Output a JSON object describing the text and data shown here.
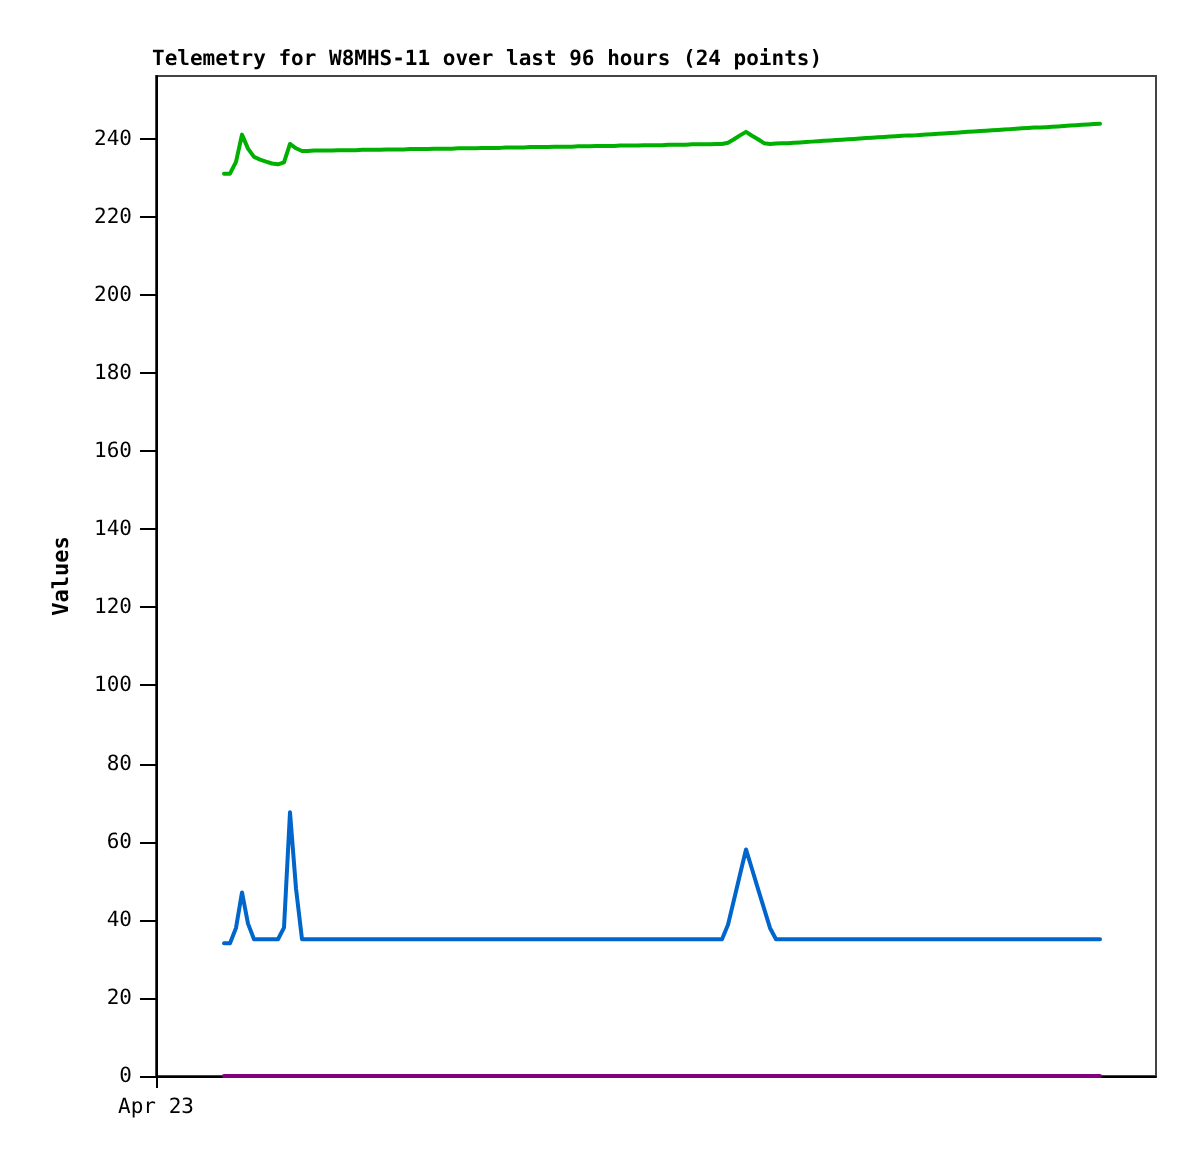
{
  "chart_data": {
    "type": "line",
    "title": "Telemetry for W8MHS-11 over last 96 hours (24 points)",
    "ylabel": "Values",
    "annotations": [
      "Apr 23"
    ],
    "categories": [
      null,
      null,
      null,
      null,
      null,
      null,
      null,
      null,
      null,
      null,
      null,
      null,
      null,
      null,
      null,
      null,
      null,
      null,
      null,
      null,
      null,
      null,
      null,
      null,
      null,
      null,
      null,
      null,
      null,
      null,
      null,
      null,
      null,
      null,
      null,
      null,
      null,
      null,
      null,
      null,
      null,
      null,
      null,
      null,
      null,
      null,
      null,
      null,
      null,
      null,
      null,
      null,
      null,
      null,
      null,
      null,
      null,
      null,
      null,
      null,
      null,
      null,
      null,
      null,
      null,
      null,
      null,
      null,
      null,
      null,
      null,
      null,
      null,
      null,
      null,
      null,
      null,
      null,
      null,
      null,
      null,
      null,
      null,
      null,
      null,
      null,
      null,
      null,
      null,
      null,
      null,
      null,
      null,
      null,
      null,
      null,
      null,
      null,
      null,
      null,
      null,
      null,
      null,
      null,
      null,
      null,
      null,
      null,
      null,
      null,
      null,
      null,
      null,
      null,
      null,
      null,
      null,
      null,
      null,
      null,
      null,
      null,
      null,
      null,
      null,
      null,
      null,
      null,
      null,
      null,
      null,
      null,
      null,
      null,
      null,
      null,
      null,
      null,
      null,
      null,
      null,
      null,
      null,
      null,
      null,
      null,
      null
    ],
    "series": [
      {
        "color": "#00b000",
        "values": [
          231,
          231,
          234.0,
          241,
          237.4,
          235.3,
          234.6,
          234.1,
          233.6,
          233.4,
          233.9,
          238.6,
          237.5,
          236.8,
          236.8,
          236.9,
          236.9,
          236.9,
          236.9,
          237.0,
          237.0,
          237.0,
          237.0,
          237.1,
          237.1,
          237.1,
          237.1,
          237.2,
          237.2,
          237.2,
          237.2,
          237.3,
          237.3,
          237.3,
          237.3,
          237.4,
          237.4,
          237.4,
          237.4,
          237.5,
          237.5,
          237.5,
          237.5,
          237.6,
          237.6,
          237.6,
          237.6,
          237.7,
          237.7,
          237.7,
          237.7,
          237.8,
          237.8,
          237.8,
          237.8,
          237.9,
          237.9,
          237.9,
          237.9,
          238.0,
          238.0,
          238.0,
          238.1,
          238.1,
          238.1,
          238.1,
          238.2,
          238.2,
          238.2,
          238.2,
          238.3,
          238.3,
          238.3,
          238.3,
          238.4,
          238.4,
          238.4,
          238.4,
          238.5,
          238.5,
          238.5,
          238.5,
          238.6,
          238.6,
          238.9,
          239.8,
          240.8,
          241.7,
          240.7,
          239.8,
          238.8,
          238.6,
          238.7,
          238.8,
          238.8,
          238.9,
          239.0,
          239.1,
          239.2,
          239.3,
          239.4,
          239.5,
          239.6,
          239.7,
          239.8,
          239.9,
          240.0,
          240.1,
          240.2,
          240.3,
          240.4,
          240.5,
          240.6,
          240.7,
          240.8,
          240.8,
          240.9,
          241.0,
          241.1,
          241.2,
          241.3,
          241.4,
          241.5,
          241.6,
          241.7,
          241.8,
          241.9,
          242.0,
          242.1,
          242.2,
          242.3,
          242.4,
          242.5,
          242.6,
          242.7,
          242.8,
          242.8,
          242.9,
          243.0,
          243.1,
          243.2,
          243.3,
          243.4,
          243.5,
          243.6,
          243.7,
          243.8
        ]
      },
      {
        "color": "#0066cc",
        "values": [
          34,
          34,
          37.9,
          47,
          39,
          35,
          35,
          35,
          35,
          35,
          38,
          67.5,
          48,
          35,
          35,
          35,
          35,
          35,
          35,
          35,
          35,
          35,
          35,
          35,
          35,
          35,
          35,
          35,
          35,
          35,
          35,
          35,
          35,
          35,
          35,
          35,
          35,
          35,
          35,
          35,
          35,
          35,
          35,
          35,
          35,
          35,
          35,
          35,
          35,
          35,
          35,
          35,
          35,
          35,
          35,
          35,
          35,
          35,
          35,
          35,
          35,
          35,
          35,
          35,
          35,
          35,
          35,
          35,
          35,
          35,
          35,
          35,
          35,
          35,
          35,
          35,
          35,
          35,
          35,
          35,
          35,
          35,
          35,
          35,
          38.7,
          45.1,
          51.6,
          58,
          53,
          47.9,
          42.9,
          37.9,
          35,
          35,
          35,
          35,
          35,
          35,
          35,
          35,
          35,
          35,
          35,
          35,
          35,
          35,
          35,
          35,
          35,
          35,
          35,
          35,
          35,
          35,
          35,
          35,
          35,
          35,
          35,
          35,
          35,
          35,
          35,
          35,
          35,
          35,
          35,
          35,
          35,
          35,
          35,
          35,
          35,
          35,
          35,
          35,
          35,
          35,
          35,
          35,
          35,
          35,
          35,
          35,
          35,
          35,
          35
        ]
      },
      {
        "color": "#800080",
        "values": [
          0,
          0,
          0,
          0,
          0,
          0,
          0,
          0,
          0,
          0,
          0,
          0,
          0,
          0,
          0,
          0,
          0,
          0,
          0,
          0,
          0,
          0,
          0,
          0,
          0,
          0,
          0,
          0,
          0,
          0,
          0,
          0,
          0,
          0,
          0,
          0,
          0,
          0,
          0,
          0,
          0,
          0,
          0,
          0,
          0,
          0,
          0,
          0,
          0,
          0,
          0,
          0,
          0,
          0,
          0,
          0,
          0,
          0,
          0,
          0,
          0,
          0,
          0,
          0,
          0,
          0,
          0,
          0,
          0,
          0,
          0,
          0,
          0,
          0,
          0,
          0,
          0,
          0,
          0,
          0,
          0,
          0,
          0,
          0,
          0,
          0,
          0,
          0,
          0,
          0,
          0,
          0,
          0,
          0,
          0,
          0,
          0,
          0,
          0,
          0,
          0,
          0,
          0,
          0,
          0,
          0,
          0,
          0,
          0,
          0,
          0,
          0,
          0,
          0,
          0,
          0,
          0,
          0,
          0,
          0,
          0,
          0,
          0,
          0,
          0,
          0,
          0,
          0,
          0,
          0,
          0,
          0,
          0,
          0,
          0,
          0,
          0,
          0,
          0,
          0,
          0,
          0,
          0,
          0,
          0,
          0,
          0
        ]
      }
    ],
    "ylim": [
      0,
      256
    ],
    "yticks": [
      0,
      20,
      40,
      60,
      80,
      100,
      120,
      140,
      160,
      180,
      200,
      220,
      240
    ]
  }
}
